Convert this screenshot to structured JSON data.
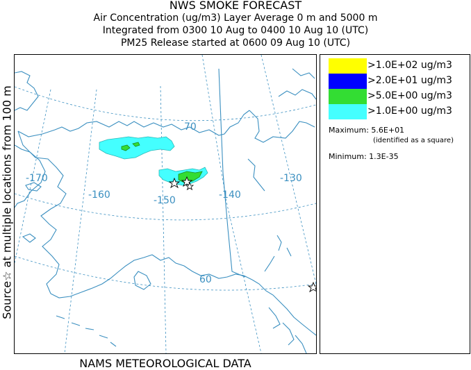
{
  "header": {
    "title": "NWS SMOKE FORECAST",
    "line2": "Air Concentration (ug/m3) Layer Average    0 m and  5000 m",
    "line3": "Integrated from 0300 10 Aug to 0400 10 Aug 10 (UTC)",
    "line4": "PM25 Release started at 0600 09 Aug 10 (UTC)"
  },
  "side_label": "Source☆ at multiple locations  from  100 m",
  "footer": "NAMS METEOROLOGICAL DATA",
  "map": {
    "graticule_labels": {
      "lat_70": "70",
      "lat_60": "60",
      "lon_m170": "-170",
      "lon_m160": "-160",
      "lon_m150": "-150",
      "lon_m140": "-140",
      "lon_m130": "-130"
    },
    "line_color": "#3a8fc0",
    "source_marker_icon": "star-icon"
  },
  "legend": {
    "items": [
      {
        "label": ">1.0E+02 ug/m3",
        "color": "#ffff00"
      },
      {
        "label": ">2.0E+01 ug/m3",
        "color": "#0000ff"
      },
      {
        "label": ">5.0E+00 ug/m3",
        "color": "#33dd33"
      },
      {
        "label": ">1.0E+00 ug/m3",
        "color": "#44ffff"
      }
    ],
    "maximum": "Maximum: 5.6E+01",
    "maximum_note": "(identified as a square)",
    "minimum": "Minimum: 1.3E-35"
  }
}
